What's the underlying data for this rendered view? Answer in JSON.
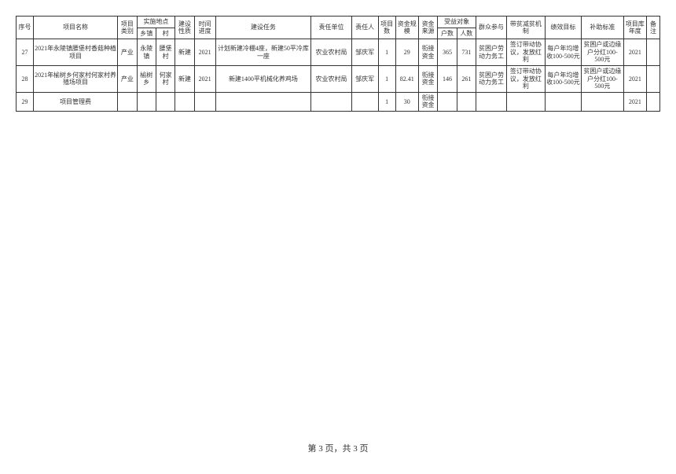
{
  "headers": {
    "seq": "序号",
    "name": "项目名称",
    "category": "项目类别",
    "location": "实施地点",
    "town": "乡镇",
    "village": "村",
    "nature": "建设性质",
    "time": "时间进度",
    "task": "建设任务",
    "respunit": "责任单位",
    "respperson": "责任人",
    "count": "项目数",
    "scale": "资金规模",
    "source": "资金来源",
    "beneficiary": "受益对象",
    "households": "户数",
    "people": "人数",
    "participation": "群众参与",
    "mechanism": "带贫减贫机制",
    "performance": "绩效目标",
    "subsidy": "补助标准",
    "year": "项目库年度",
    "remark": "备注"
  },
  "rows": [
    {
      "seq": "27",
      "name": "2021年永陵镇腰堡村香菇种植项目",
      "category": "产业",
      "town": "永陵镇",
      "village": "腰堡村",
      "nature": "新建",
      "time": "2021",
      "task": "计划新建冷棚4座，新建50平冷库一座",
      "respunit": "农业农村局",
      "respperson": "邹庆军",
      "count": "1",
      "scale": "29",
      "source": "衔接资金",
      "households": "365",
      "people": "731",
      "participation": "贫困户劳动力务工",
      "mechanism": "签订带动协议，发放红利",
      "performance": "每户年均增收100-500元",
      "subsidy": "贫困户或边缘户分红100-500元",
      "year": "2021",
      "remark": ""
    },
    {
      "seq": "28",
      "name": "2021年榆树乡何家村何家村养殖场项目",
      "category": "产业",
      "town": "榆树乡",
      "village": "何家村",
      "nature": "新建",
      "time": "2021",
      "task": "新建1400平机械化养鸡场",
      "respunit": "农业农村局",
      "respperson": "邹庆军",
      "count": "1",
      "scale": "82.41",
      "source": "衔接资金",
      "households": "146",
      "people": "261",
      "participation": "贫困户劳动力务工",
      "mechanism": "签订带动协议，发放红利",
      "performance": "每户年均增收100-500元",
      "subsidy": "贫困户或边缘户分红100-500元",
      "year": "2021",
      "remark": ""
    },
    {
      "seq": "29",
      "name": "项目管理费",
      "category": "",
      "town": "",
      "village": "",
      "nature": "",
      "time": "",
      "task": "",
      "respunit": "",
      "respperson": "",
      "count": "1",
      "scale": "30",
      "source": "衔接资金",
      "households": "",
      "people": "",
      "participation": "",
      "mechanism": "",
      "performance": "",
      "subsidy": "",
      "year": "2021",
      "remark": ""
    }
  ],
  "footer": "第 3 页，共 3 页"
}
